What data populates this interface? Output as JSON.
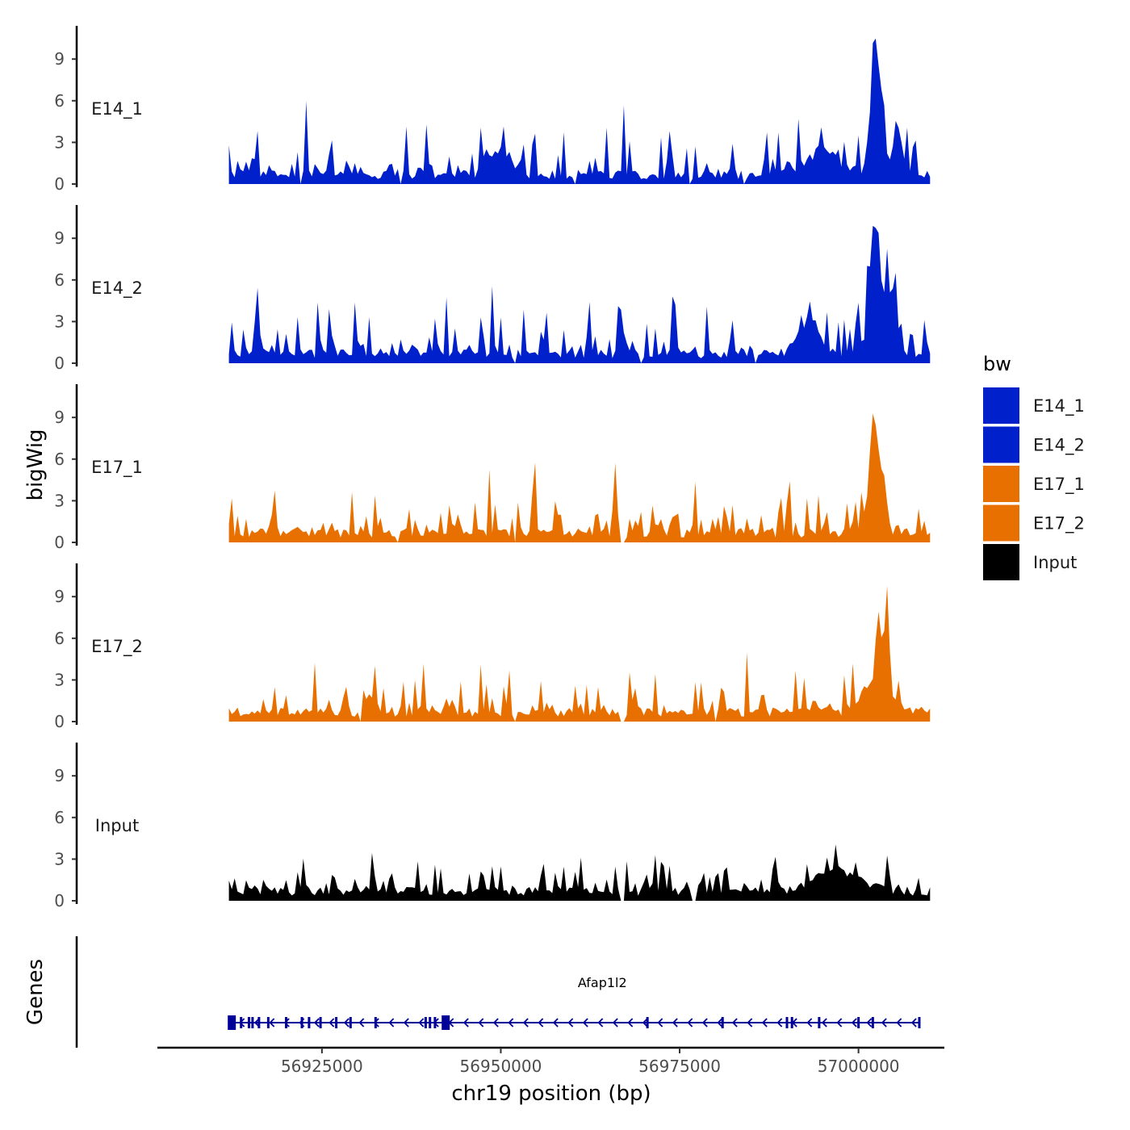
{
  "chart_data": {
    "type": "area",
    "ylabel": "bigWig",
    "xlabel": "chr19 position (bp)",
    "genes_label": "Genes",
    "xlim": [
      56902000,
      57012000
    ],
    "x_ticks": [
      56925000,
      56950000,
      56975000,
      57000000
    ],
    "x_tick_labels": [
      "56925000",
      "56950000",
      "56975000",
      "57000000"
    ],
    "ylim": [
      0,
      11
    ],
    "y_ticks": [
      0,
      3,
      6,
      9
    ],
    "y_tick_labels": [
      "0",
      "3",
      "6",
      "9"
    ],
    "region_start": 56912000,
    "region_end": 57010000,
    "signal_description": "coverage tracks sampled every ~400 bp; noisy baseline approx 0-3, approximate values",
    "tracks": [
      {
        "name": "E14_1",
        "color": "#0020CC",
        "baseline": 1.0,
        "noise": 2.0,
        "peaks": [
          {
            "pos": 57002500,
            "height": 10.5,
            "width": 1100
          },
          {
            "pos": 57005500,
            "height": 3.2,
            "width": 900
          },
          {
            "pos": 56995000,
            "height": 2.0,
            "width": 3000
          },
          {
            "pos": 56950000,
            "height": 2.2,
            "width": 2000
          }
        ],
        "gaps": [
          56922000,
          56936000,
          56960500,
          56976500,
          56984000
        ]
      },
      {
        "name": "E14_2",
        "color": "#0020CC",
        "baseline": 1.0,
        "noise": 2.2,
        "peaks": [
          {
            "pos": 57002300,
            "height": 10.3,
            "width": 1000
          },
          {
            "pos": 57004500,
            "height": 4.5,
            "width": 1200
          },
          {
            "pos": 56993000,
            "height": 2.5,
            "width": 2000
          },
          {
            "pos": 56916000,
            "height": 4.8,
            "width": 400
          }
        ],
        "gaps": [
          56952000,
          56969500,
          56985500
        ]
      },
      {
        "name": "E17_1",
        "color": "#E87000",
        "baseline": 1.0,
        "noise": 1.8,
        "peaks": [
          {
            "pos": 57002000,
            "height": 8.9,
            "width": 700
          },
          {
            "pos": 57003000,
            "height": 4.8,
            "width": 900
          },
          {
            "pos": 56966000,
            "height": 3.8,
            "width": 400
          }
        ],
        "gaps": [
          56935500,
          56952000,
          56967000
        ]
      },
      {
        "name": "E17_2",
        "color": "#E87000",
        "baseline": 1.0,
        "noise": 1.9,
        "peaks": [
          {
            "pos": 57004000,
            "height": 5.5,
            "width": 500
          },
          {
            "pos": 57002500,
            "height": 2.8,
            "width": 2500
          }
        ],
        "gaps": [
          56930500,
          56952000,
          56967000,
          56980000
        ]
      },
      {
        "name": "Input",
        "color": "#000000",
        "baseline": 1.0,
        "noise": 1.4,
        "peaks": [
          {
            "pos": 56997000,
            "height": 1.8,
            "width": 4000
          }
        ],
        "gaps": [
          56967000,
          56977000
        ]
      }
    ],
    "gene": {
      "name": "Afap1l2",
      "start": 56912000,
      "end": 57008500,
      "strand": "-",
      "color": "#000099",
      "exons": [
        56912200,
        56912600,
        56913700,
        56914800,
        56915300,
        56916200,
        56917500,
        56920000,
        56922200,
        56923200,
        56924800,
        56927000,
        56929000,
        56932500,
        56939500,
        56940100,
        56940800,
        56970500,
        56981000,
        56990000,
        56990700,
        56994500,
        57000000,
        57002000,
        57008500
      ],
      "big_exons": [
        56912400,
        56942300
      ]
    },
    "legend": {
      "title": "bw",
      "entries": [
        {
          "label": "E14_1",
          "color": "#0020CC"
        },
        {
          "label": "E14_2",
          "color": "#0020CC"
        },
        {
          "label": "E17_1",
          "color": "#E87000"
        },
        {
          "label": "E17_2",
          "color": "#E87000"
        },
        {
          "label": "Input",
          "color": "#000000"
        }
      ]
    }
  }
}
